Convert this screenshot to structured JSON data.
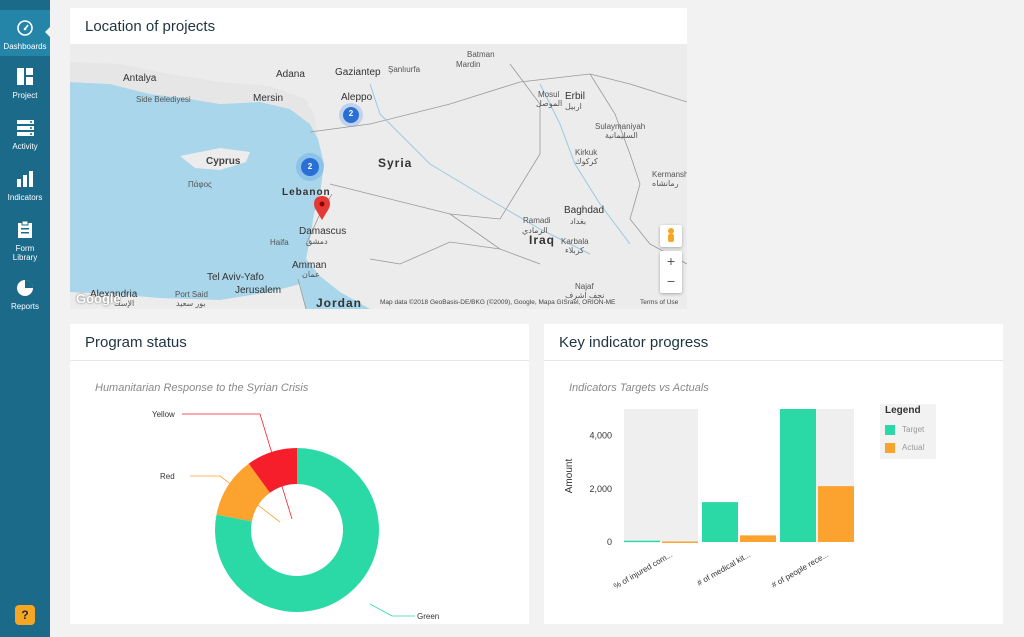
{
  "sidebar": {
    "items": [
      {
        "label": "Dashboards",
        "icon": "gauge-icon"
      },
      {
        "label": "Project",
        "icon": "grid-icon"
      },
      {
        "label": "Activity",
        "icon": "list-icon"
      },
      {
        "label": "Indicators",
        "icon": "bar-chart-icon"
      },
      {
        "label": "Form\nLibrary",
        "icon": "clipboard-icon"
      },
      {
        "label": "Reports",
        "icon": "pie-chart-icon"
      }
    ],
    "help": "?"
  },
  "map_card": {
    "title": "Location of projects",
    "clusters": [
      {
        "count": "2"
      },
      {
        "count": "2"
      }
    ],
    "labels": {
      "antalya": "Antalya",
      "side": "Side Belediyesi",
      "adana": "Adana",
      "mersin": "Mersin",
      "gaziantep": "Gaziantep",
      "sanliurfa": "Şanlıurfa",
      "batman": "Batman",
      "mardin": "Mardin",
      "aleppo": "Aleppo",
      "syria": "Syria",
      "mosul": "Mosul",
      "mosul_ar": "الموصل",
      "erbil": "Erbil",
      "erbil_ar": "اربيل",
      "sulaymaniyah": "Sulaymaniyah",
      "sulaymaniyah_ar": "السليمانية",
      "kirkuk": "Kirkuk",
      "kirkuk_ar": "كركوك",
      "kermanshah": "Kermansh",
      "kermanshah_ar": "رمانشاه",
      "cyprus": "Cyprus",
      "pafos": "Πάφος",
      "lebanon": "Lebanon",
      "damascus": "Damascus",
      "damascus_ar": "دمشق",
      "haifa": "Haifa",
      "baghdad": "Baghdad",
      "baghdad_ar": "بغداد",
      "ramadi": "Ramadi",
      "ramadi_ar": "الرمادي",
      "iraq": "Iraq",
      "karbala": "Karbala",
      "karbala_ar": "كربلاء",
      "telaviv": "Tel Aviv-Yafo",
      "amman": "Amman",
      "amman_ar": "عمان",
      "jerusalem": "Jerusalem",
      "alexandria": "Alexandria",
      "alexandria_ar": "الإسك",
      "portsaid": "Port Said",
      "portsaid_ar": "بور سعيد",
      "jordan": "Jordan",
      "najaf": "Najaf",
      "najaf_ar": "نجف اشرف"
    },
    "attribution": "Map data ©2018 GeoBasis-DE/BKG (©2009), Google, Mapa GISrael, ORION-ME",
    "terms": "Terms of Use",
    "google": "Google",
    "zoom_in": "+",
    "zoom_out": "−"
  },
  "program_card": {
    "title": "Program status",
    "subtitle": "Humanitarian Response to the Syrian Crisis",
    "labels": {
      "yellow": "Yellow",
      "red": "Red",
      "green": "Green"
    }
  },
  "indicator_card": {
    "title": "Key indicator progress",
    "subtitle": "Indicators Targets vs Actuals",
    "legend_title": "Legend",
    "legend_items": [
      "Target",
      "Actual"
    ],
    "ylabel": "Amount"
  },
  "colors": {
    "green": "#2bd9a6",
    "orange": "#fba22f",
    "red": "#f51e2a",
    "sidebar": "#1b6a8a"
  },
  "chart_data": [
    {
      "type": "pie",
      "title": "Humanitarian Response to the Syrian Crisis",
      "categories": [
        "Green",
        "Yellow",
        "Red"
      ],
      "values": [
        78,
        12,
        10
      ],
      "label_text": [
        "Green",
        "Red",
        "Yellow"
      ]
    },
    {
      "type": "bar",
      "title": "Indicators Targets vs Actuals",
      "categories": [
        "% of injured com...",
        "# of medical kit...",
        "# of people rece..."
      ],
      "series": [
        {
          "name": "Target",
          "values": [
            50,
            1500,
            5000
          ],
          "color": "#2bd9a6"
        },
        {
          "name": "Actual",
          "values": [
            20,
            250,
            2100
          ],
          "color": "#fba22f"
        }
      ],
      "ylabel": "Amount",
      "ylim": [
        0,
        5000
      ],
      "yticks": [
        "0",
        "2,000",
        "4,000"
      ],
      "ytick_values": [
        0,
        2000,
        4000
      ],
      "legend_position": "right"
    }
  ]
}
